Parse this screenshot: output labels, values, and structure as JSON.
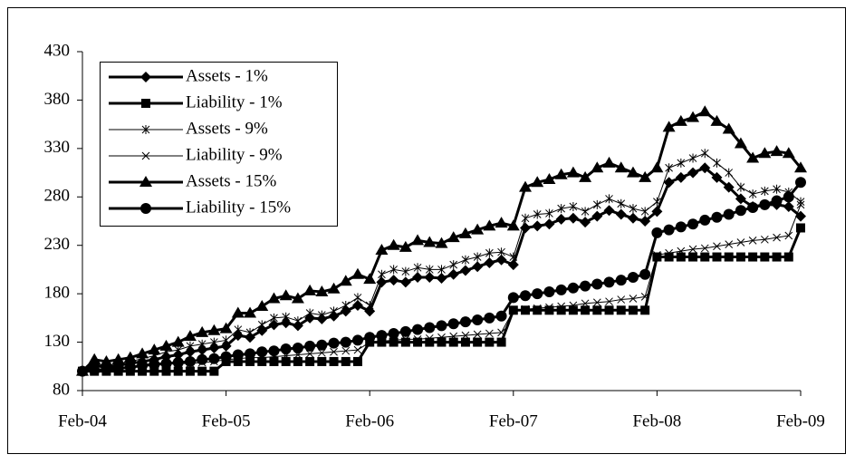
{
  "chart_data": {
    "type": "line",
    "categories": [
      "Feb-04",
      null,
      null,
      null,
      null,
      null,
      null,
      null,
      null,
      null,
      null,
      null,
      "Feb-05",
      null,
      null,
      null,
      null,
      null,
      null,
      null,
      null,
      null,
      null,
      null,
      "Feb-06",
      null,
      null,
      null,
      null,
      null,
      null,
      null,
      null,
      null,
      null,
      null,
      "Feb-07",
      null,
      null,
      null,
      null,
      null,
      null,
      null,
      null,
      null,
      null,
      null,
      "Feb-08",
      null,
      null,
      null,
      null,
      null,
      null,
      null,
      null,
      null,
      null,
      null,
      "Feb-09"
    ],
    "ylim": [
      80,
      430
    ],
    "yticks": [
      80,
      130,
      180,
      230,
      280,
      330,
      380,
      430
    ],
    "grid": false,
    "legend": "upper-left",
    "series": [
      {
        "name": "Assets - 1%",
        "color": "#000000",
        "marker": "diamond",
        "width": 3,
        "values": [
          100,
          106,
          104,
          106,
          108,
          110,
          112,
          115,
          117,
          120,
          122,
          124,
          126,
          137,
          135,
          142,
          148,
          150,
          147,
          155,
          154,
          157,
          162,
          168,
          162,
          192,
          194,
          192,
          197,
          197,
          196,
          200,
          204,
          208,
          212,
          215,
          210,
          248,
          250,
          252,
          257,
          258,
          254,
          260,
          266,
          262,
          258,
          255,
          265,
          295,
          300,
          305,
          310,
          300,
          290,
          278,
          270,
          272,
          272,
          270,
          260
        ]
      },
      {
        "name": "Liability - 1%",
        "color": "#000000",
        "marker": "square",
        "width": 3,
        "values": [
          100,
          100,
          100,
          100,
          100,
          100,
          100,
          100,
          100,
          100,
          100,
          100,
          110,
          110,
          110,
          110,
          110,
          110,
          110,
          110,
          110,
          110,
          110,
          110,
          130,
          130,
          130,
          130,
          130,
          130,
          130,
          130,
          130,
          130,
          130,
          130,
          163,
          163,
          163,
          163,
          163,
          163,
          163,
          163,
          163,
          163,
          163,
          163,
          218,
          218,
          218,
          218,
          218,
          218,
          218,
          218,
          218,
          218,
          218,
          218,
          248
        ]
      },
      {
        "name": "Assets - 9%",
        "color": "#000000",
        "marker": "asterisk",
        "width": 1,
        "values": [
          100,
          108,
          106,
          108,
          110,
          113,
          116,
          120,
          122,
          126,
          128,
          130,
          132,
          143,
          140,
          148,
          155,
          156,
          152,
          160,
          158,
          162,
          168,
          176,
          168,
          200,
          205,
          203,
          207,
          205,
          205,
          210,
          215,
          218,
          222,
          223,
          218,
          258,
          262,
          263,
          268,
          270,
          265,
          272,
          278,
          273,
          268,
          265,
          275,
          310,
          315,
          320,
          325,
          315,
          305,
          290,
          283,
          286,
          288,
          285,
          275
        ]
      },
      {
        "name": "Liability - 9%",
        "color": "#000000",
        "marker": "cross",
        "width": 1,
        "values": [
          100,
          101,
          102,
          103,
          104,
          105,
          106,
          107,
          108,
          108,
          109,
          110,
          112,
          113,
          114,
          114,
          115,
          116,
          117,
          118,
          119,
          120,
          121,
          122,
          130,
          131,
          132,
          133,
          133,
          134,
          135,
          136,
          137,
          138,
          139,
          140,
          163,
          164,
          165,
          166,
          167,
          168,
          170,
          171,
          172,
          174,
          175,
          177,
          220,
          222,
          224,
          226,
          227,
          229,
          231,
          233,
          235,
          236,
          238,
          240,
          272
        ]
      },
      {
        "name": "Assets - 15%",
        "color": "#000000",
        "marker": "triangle",
        "width": 3,
        "values": [
          100,
          112,
          110,
          112,
          114,
          118,
          122,
          126,
          130,
          136,
          140,
          142,
          144,
          160,
          160,
          167,
          175,
          178,
          175,
          183,
          182,
          185,
          193,
          200,
          195,
          225,
          230,
          228,
          235,
          233,
          232,
          238,
          242,
          246,
          250,
          253,
          250,
          290,
          295,
          298,
          303,
          305,
          300,
          310,
          315,
          310,
          305,
          300,
          310,
          352,
          358,
          362,
          368,
          358,
          350,
          335,
          320,
          325,
          327,
          325,
          310
        ]
      },
      {
        "name": "Liability - 15%",
        "color": "#000000",
        "marker": "circle",
        "width": 3,
        "values": [
          100,
          101,
          102,
          103,
          104,
          106,
          107,
          108,
          109,
          110,
          112,
          113,
          115,
          117,
          118,
          120,
          121,
          123,
          124,
          126,
          127,
          129,
          130,
          132,
          135,
          137,
          139,
          141,
          143,
          145,
          147,
          149,
          151,
          153,
          155,
          157,
          176,
          178,
          180,
          182,
          184,
          186,
          188,
          190,
          192,
          194,
          197,
          200,
          243,
          246,
          249,
          252,
          256,
          259,
          262,
          266,
          269,
          272,
          276,
          280,
          295
        ]
      }
    ]
  }
}
